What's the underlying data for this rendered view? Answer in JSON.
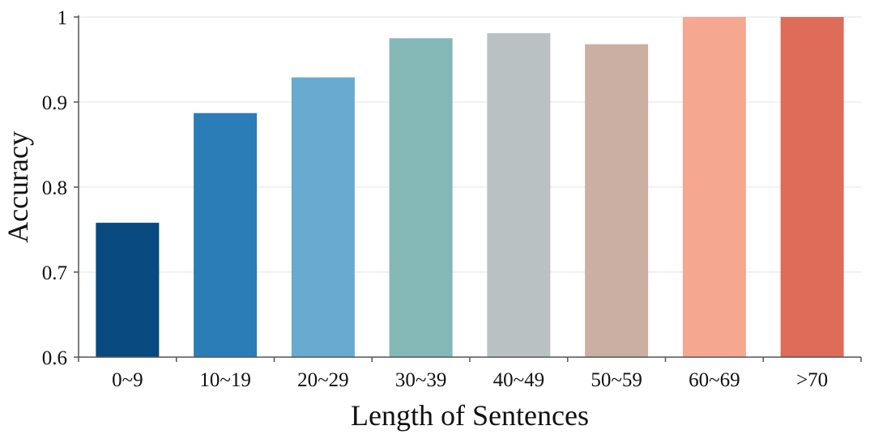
{
  "chart_data": {
    "type": "bar",
    "title": "",
    "xlabel": "Length of Sentences",
    "ylabel": "Accuracy",
    "ylim": [
      0.6,
      1.0
    ],
    "yticks": [
      "0.6",
      "0.7",
      "0.8",
      "0.9",
      "1"
    ],
    "grid": "horizontal",
    "categories": [
      "0~9",
      "10~19",
      "20~29",
      "30~39",
      "40~49",
      "50~59",
      "60~69",
      ">70"
    ],
    "values": [
      0.758,
      0.887,
      0.929,
      0.975,
      0.981,
      0.968,
      1.0,
      1.0
    ],
    "colors": [
      "#08497f",
      "#2a7db6",
      "#69abd0",
      "#84b8b7",
      "#b9c1c3",
      "#cbafa2",
      "#f6a78f",
      "#df6b59"
    ]
  }
}
